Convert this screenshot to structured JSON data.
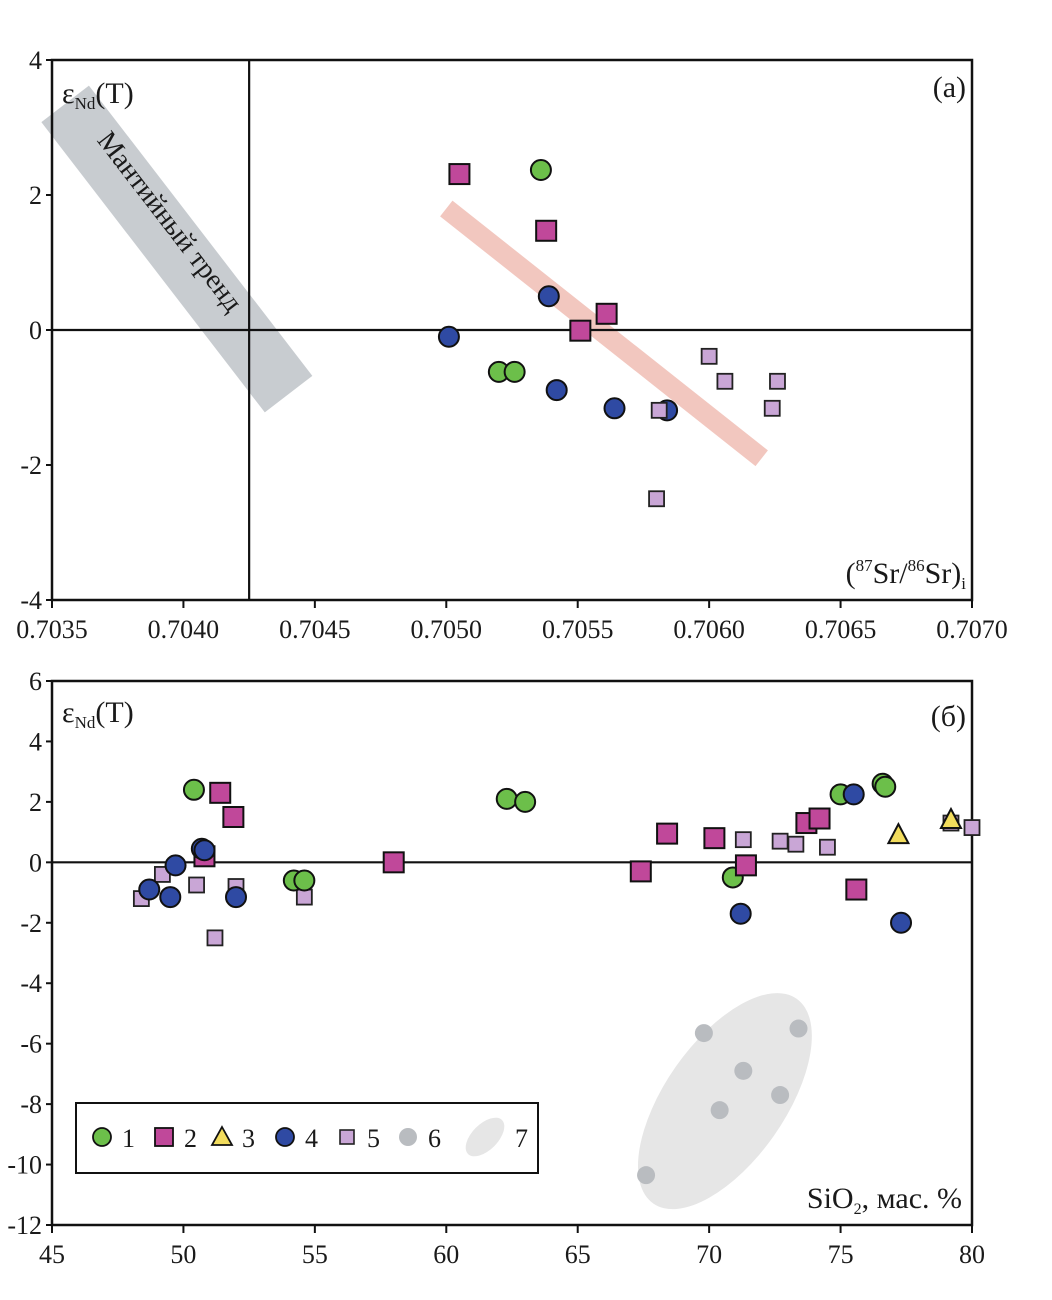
{
  "chart_data": [
    {
      "type": "scatter",
      "panel_label": "(a)",
      "xlabel": "(87Sr/86Sr)i",
      "ylabel": "εNd(T)",
      "xlim": [
        0.7035,
        0.707
      ],
      "ylim": [
        -4,
        4
      ],
      "xticks": [
        "0.7035",
        "0.7040",
        "0.7045",
        "0.7050",
        "0.7055",
        "0.7060",
        "0.7065",
        "0.7070"
      ],
      "xtick_values": [
        0.7035,
        0.704,
        0.7045,
        0.705,
        0.7055,
        0.706,
        0.7065,
        0.707
      ],
      "yticks": [
        "4",
        "2",
        "0",
        "-2",
        "-4"
      ],
      "ytick_values": [
        4,
        2,
        0,
        -2,
        -4
      ],
      "reference_lines": {
        "y": 0,
        "x": 0.70425
      },
      "bands": [
        {
          "name": "Мантийный тренд",
          "label": "Мантийный тренд",
          "color": "#c8ccd0",
          "from": [
            0.70355,
            3.35
          ],
          "to": [
            0.7044,
            -0.95
          ]
        },
        {
          "name": "trend",
          "label": "",
          "color": "#f2c7bf",
          "from": [
            0.705,
            1.8
          ],
          "to": [
            0.7062,
            -1.9
          ]
        }
      ],
      "series": [
        {
          "name": "1",
          "marker": "circle",
          "color": "#6cbf4a",
          "points": [
            [
              0.70536,
              2.37
            ],
            [
              0.7052,
              -0.62
            ],
            [
              0.70526,
              -0.62
            ]
          ]
        },
        {
          "name": "2",
          "marker": "square",
          "color": "#c0489a",
          "points": [
            [
              0.70505,
              2.31
            ],
            [
              0.70538,
              1.47
            ],
            [
              0.70551,
              -0.01
            ],
            [
              0.70561,
              0.24
            ]
          ]
        },
        {
          "name": "4",
          "marker": "circle",
          "color": "#2f4aa3",
          "points": [
            [
              0.70501,
              -0.1
            ],
            [
              0.70539,
              0.5
            ],
            [
              0.70542,
              -0.89
            ],
            [
              0.70564,
              -1.16
            ],
            [
              0.70584,
              -1.19
            ]
          ]
        },
        {
          "name": "5",
          "marker": "small-square",
          "color": "#c9a6d6",
          "points": [
            [
              0.70581,
              -1.19
            ],
            [
              0.706,
              -0.39
            ],
            [
              0.70606,
              -0.76
            ],
            [
              0.70626,
              -0.76
            ],
            [
              0.70624,
              -1.16
            ],
            [
              0.7058,
              -2.5
            ]
          ]
        }
      ]
    },
    {
      "type": "scatter",
      "panel_label": "(б)",
      "xlabel": "SiO2, мас. %",
      "ylabel": "εNd(T)",
      "xlim": [
        45,
        80
      ],
      "ylim": [
        -12,
        6
      ],
      "xticks": [
        "45",
        "50",
        "55",
        "60",
        "65",
        "70",
        "75",
        "80"
      ],
      "xtick_values": [
        45,
        50,
        55,
        60,
        65,
        70,
        75,
        80
      ],
      "yticks": [
        "6",
        "4",
        "2",
        "0",
        "-2",
        "-4",
        "-6",
        "-8",
        "-10",
        "-12"
      ],
      "ytick_values": [
        6,
        4,
        2,
        0,
        -2,
        -4,
        -6,
        -8,
        -10,
        -12
      ],
      "reference_lines": {
        "y": 0
      },
      "field": {
        "name": "7",
        "color": "#e6e6e6",
        "center": [
          70.6,
          -7.9
        ],
        "note": "ellipse enclosing group 6"
      },
      "series": [
        {
          "name": "1",
          "marker": "circle",
          "color": "#6cbf4a",
          "points": [
            [
              50.4,
              2.4
            ],
            [
              54.2,
              -0.6
            ],
            [
              54.6,
              -0.6
            ],
            [
              62.3,
              2.1
            ],
            [
              63.0,
              2.0
            ],
            [
              70.9,
              -0.5
            ],
            [
              75.0,
              2.25
            ],
            [
              76.6,
              2.6
            ],
            [
              76.7,
              2.5
            ]
          ]
        },
        {
          "name": "2",
          "marker": "square",
          "color": "#c0489a",
          "points": [
            [
              51.4,
              2.3
            ],
            [
              51.9,
              1.5
            ],
            [
              50.8,
              0.2
            ],
            [
              58.0,
              0.0
            ],
            [
              67.4,
              -0.3
            ],
            [
              68.4,
              0.95
            ],
            [
              70.2,
              0.8
            ],
            [
              71.4,
              -0.1
            ],
            [
              73.7,
              1.3
            ],
            [
              74.2,
              1.45
            ],
            [
              75.6,
              -0.9
            ]
          ]
        },
        {
          "name": "3",
          "marker": "triangle",
          "color": "#f2dc5d",
          "points": [
            [
              77.2,
              0.9
            ],
            [
              79.2,
              1.4
            ]
          ]
        },
        {
          "name": "4",
          "marker": "circle",
          "color": "#2f4aa3",
          "points": [
            [
              48.7,
              -0.9
            ],
            [
              49.5,
              -1.15
            ],
            [
              49.7,
              -0.1
            ],
            [
              50.7,
              0.45
            ],
            [
              50.8,
              0.4
            ],
            [
              52.0,
              -1.15
            ],
            [
              71.2,
              -1.7
            ],
            [
              75.5,
              2.25
            ],
            [
              77.3,
              -2.0
            ]
          ]
        },
        {
          "name": "5",
          "marker": "small-square",
          "color": "#c9a6d6",
          "points": [
            [
              48.4,
              -1.2
            ],
            [
              49.2,
              -0.4
            ],
            [
              50.5,
              -0.75
            ],
            [
              51.2,
              -2.5
            ],
            [
              52.0,
              -0.8
            ],
            [
              54.6,
              -1.15
            ],
            [
              71.3,
              0.75
            ],
            [
              72.7,
              0.7
            ],
            [
              73.3,
              0.6
            ],
            [
              74.5,
              0.5
            ],
            [
              79.2,
              1.3
            ],
            [
              80.0,
              1.15
            ]
          ]
        },
        {
          "name": "6",
          "marker": "gray-dot",
          "color": "#b9bcc0",
          "points": [
            [
              67.6,
              -10.35
            ],
            [
              69.8,
              -5.65
            ],
            [
              70.4,
              -8.2
            ],
            [
              71.3,
              -6.9
            ],
            [
              72.7,
              -7.7
            ],
            [
              73.4,
              -5.5
            ]
          ]
        }
      ]
    }
  ],
  "legend": {
    "placement": "bottom-left",
    "entries": [
      {
        "label": "1",
        "marker": "circle",
        "color": "#6cbf4a"
      },
      {
        "label": "2",
        "marker": "square",
        "color": "#c0489a"
      },
      {
        "label": "3",
        "marker": "triangle",
        "color": "#f2dc5d"
      },
      {
        "label": "4",
        "marker": "circle",
        "color": "#2f4aa3"
      },
      {
        "label": "5",
        "marker": "small-square",
        "color": "#c9a6d6"
      },
      {
        "label": "6",
        "marker": "gray-dot",
        "color": "#b9bcc0"
      },
      {
        "label": "7",
        "marker": "ellipse",
        "color": "#e6e6e6"
      }
    ]
  },
  "labels": {
    "a_ylabel_main": "ε",
    "a_ylabel_sub": "Nd",
    "a_ylabel_tail": "(T)",
    "a_xlabel_open": "(",
    "a_xlabel_sup1": "87",
    "a_xlabel_mid": "Sr/",
    "a_xlabel_sup2": "86",
    "a_xlabel_tail": "Sr)",
    "a_xlabel_sub": "i",
    "b_ylabel_main": "ε",
    "b_ylabel_sub": "Nd",
    "b_ylabel_tail": "(T)",
    "b_xlabel_main": "SiO",
    "b_xlabel_sub": "2",
    "b_xlabel_tail": ", мас. %"
  }
}
